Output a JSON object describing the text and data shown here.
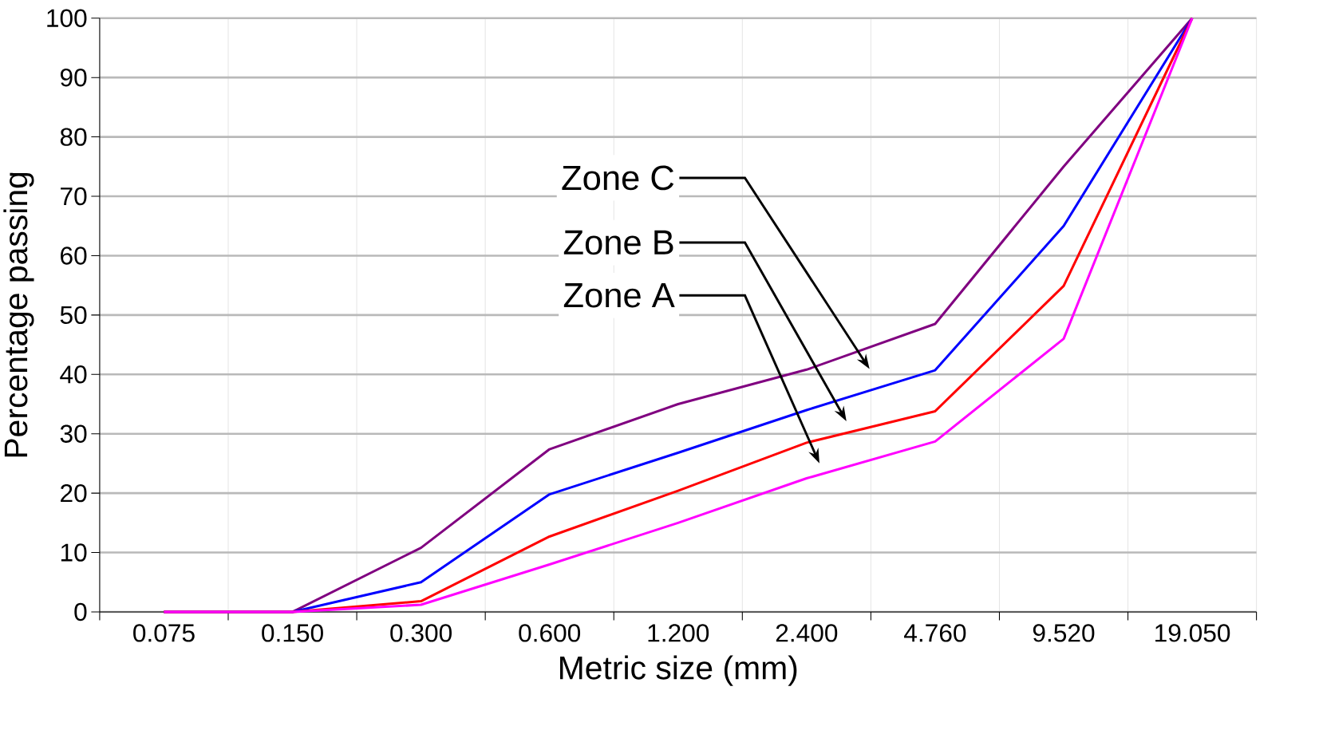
{
  "chart_data": {
    "type": "line",
    "xlabel": "Metric size (mm)",
    "ylabel": "Percentage passing",
    "categories": [
      "0.075",
      "0.150",
      "0.300",
      "0.600",
      "1.200",
      "2.400",
      "4.760",
      "9.520",
      "19.050"
    ],
    "series": [
      {
        "color": "#800080",
        "values": [
          0,
          0,
          10.8,
          27.4,
          35,
          40.8,
          48.5,
          75,
          100
        ]
      },
      {
        "color": "#0000ff",
        "values": [
          0,
          0,
          5,
          19.8,
          26.8,
          34,
          40.7,
          65,
          100
        ]
      },
      {
        "color": "#ff0000",
        "values": [
          0,
          0,
          1.8,
          12.7,
          20.4,
          28.5,
          33.8,
          54.9,
          100
        ]
      },
      {
        "color": "#ff00ff",
        "values": [
          0,
          0,
          1.2,
          8,
          15,
          22.5,
          28.7,
          46,
          100
        ]
      }
    ],
    "ylim": [
      0,
      100
    ],
    "yticks": [
      0,
      10,
      20,
      30,
      40,
      50,
      60,
      70,
      80,
      90,
      100
    ],
    "grid": true,
    "marker": "none",
    "line_style": "solid",
    "annotations": [
      "Zone C",
      "Zone B",
      "Zone A"
    ]
  }
}
